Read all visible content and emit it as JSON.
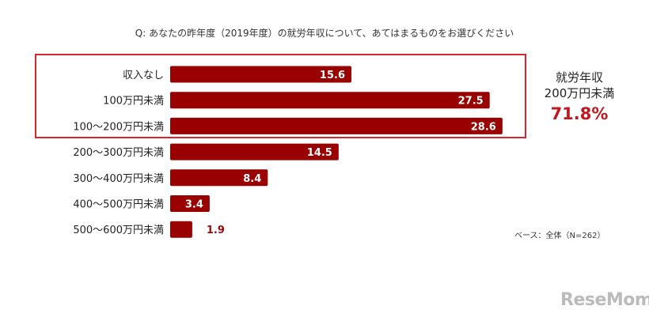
{
  "chart_data": {
    "type": "bar",
    "orientation": "horizontal",
    "title": "Q: あなたの昨年度（2019年度）の就労年収について、あてはまるものをお選びください",
    "categories": [
      "収入なし",
      "100万円未満",
      "100～200万円未満",
      "200～300万円未満",
      "300～400万円未満",
      "400～500万円未満",
      "500～600万円未満"
    ],
    "values": [
      15.6,
      27.5,
      28.6,
      14.5,
      8.4,
      3.4,
      1.9
    ],
    "value_labels": [
      "15.6",
      "27.5",
      "28.6",
      "14.5",
      "8.4",
      "3.4",
      "1.9"
    ],
    "xlim": [
      0,
      30
    ],
    "grid": false,
    "bar_color": "#990000",
    "highlight": {
      "categories": [
        "収入なし",
        "100万円未満",
        "100～200万円未満"
      ],
      "border_color": "#d9262c",
      "line1": "就労年収",
      "line2": "200万円未満",
      "value": "71.8%",
      "value_color": "#c0181f"
    },
    "base_note": "ベース：全体（N=262）"
  },
  "watermark": "ReseMom"
}
